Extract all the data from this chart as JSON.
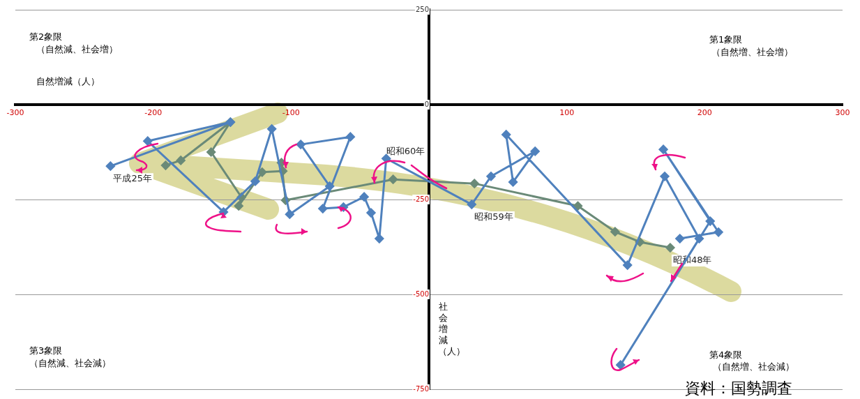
{
  "chart_data": {
    "type": "line",
    "xlabel": "自然増減（人）",
    "ylabel": "社会増減（人）",
    "annotations": [
      "第2象限",
      "（自然減、社会増）",
      "第1象限",
      "（自然増、社会増）",
      "第3象限",
      "（自然減、社会減）",
      "第4象限",
      "（自然増、社会減）",
      "資料：国勢調査",
      {
        "text": "昭和48年",
        "x": 175,
        "y": -377
      },
      {
        "text": "昭和59年",
        "x": 31,
        "y": -263
      },
      {
        "text": "昭和60年",
        "x": -31,
        "y": -142
      },
      {
        "text": "平成25年",
        "x": -231,
        "y": -162
      }
    ],
    "series": [
      {
        "color": "#4f81bd",
        "x": [
          182,
          210,
          170,
          204,
          139,
          196,
          171,
          144,
          56,
          61,
          77,
          45,
          31,
          -31,
          -36,
          -42,
          -47,
          -62,
          -77,
          -57,
          -93,
          -72,
          -101,
          -114,
          -126,
          -149,
          -204,
          -144,
          -231
        ],
        "values": [
          -353,
          -336,
          -118,
          -307,
          -686,
          -353,
          -189,
          -423,
          -79,
          -204,
          -123,
          -189,
          -263,
          -142,
          -353,
          -285,
          -243,
          -270,
          -274,
          -85,
          -105,
          -215,
          -289,
          -64,
          -202,
          -283,
          -96,
          -46,
          -162
        ]
      },
      {
        "color": "#6a8a78",
        "x": [
          175,
          153,
          135,
          108,
          33,
          -26,
          -104,
          -107,
          -106,
          -121,
          -138,
          -136,
          -158,
          -144,
          -180,
          -191
        ],
        "values": [
          -377,
          -362,
          -335,
          -267,
          -208,
          -197,
          -252,
          -153,
          -175,
          -178,
          -267,
          -244,
          -125,
          -46,
          -147,
          -160
        ]
      }
    ],
    "xlim": [
      -300,
      300
    ],
    "xticks": [
      -300,
      -200,
      -100,
      100,
      200,
      300
    ],
    "ylim": [
      -750,
      250
    ],
    "yticks": [
      250,
      0,
      -250,
      -500,
      -750
    ],
    "grid": "y",
    "legend": false,
    "marker": "diamond",
    "line_style": "solid"
  }
}
